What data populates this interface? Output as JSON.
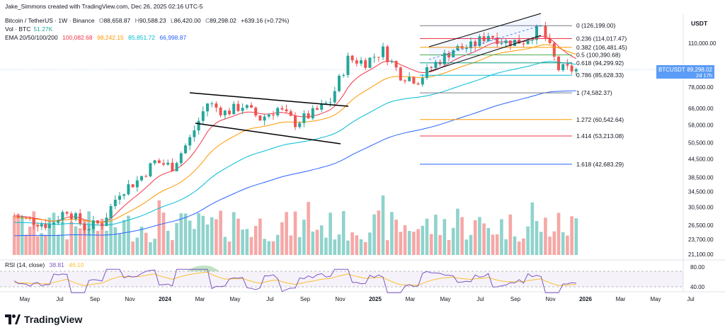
{
  "header": {
    "byline": "Jake_Simmons created with TradingView.com, Dec 26, 2025 02:16 UTC-5",
    "symbol": "Bitcoin / TetherUS · 1W · Binance",
    "ohlc": {
      "o_label": "O",
      "o": "88,658.87",
      "h_label": "H",
      "h": "90,588.23",
      "l_label": "L",
      "l": "86,420.00",
      "c_label": "C",
      "c": "89,298.02",
      "chg": "+639.16 (+0.72%)"
    },
    "vol_label": "Vol · BTC",
    "vol_value": "51.27K",
    "ema_label": "EMA 20/50/100/200",
    "ema_values": [
      "100,082.68",
      "98,242.15",
      "85,851.72",
      "66,998.87"
    ]
  },
  "colors": {
    "up": "#26a69a",
    "down": "#ef5350",
    "vol_up": "#8fd3cc",
    "vol_down": "#f5a8a6",
    "ema20": "#f23645",
    "ema50": "#ff9800",
    "ema100": "#00bcd4",
    "ema200": "#2962ff",
    "rsi": "#7e57c2",
    "rsi_ma": "#fbc02d",
    "price_tag": "#5b9cf6",
    "fib_0": "#787b86",
    "fib_0236": "#f23645",
    "fib_0382": "#ff9800",
    "fib_05": "#4caf50",
    "fib_0618": "#089981",
    "fib_0786": "#00bcd4",
    "fib_1": "#787b86",
    "fib_1272": "#ff9800",
    "fib_1414": "#f23645",
    "fib_1618": "#2962ff"
  },
  "price_axis": {
    "unit": "USDT",
    "labels": [
      "110,000.00",
      "78,000.00",
      "66,000.00",
      "58,000.00",
      "50,500.00",
      "44,500.00",
      "38,500.00",
      "34,500.00",
      "30,500.00",
      "26,500.00",
      "23,700.00",
      "21,100.00"
    ],
    "last_price_ticker": "BTCUSDT",
    "last_price": "89,298.02",
    "countdown": "2d 17h"
  },
  "fib_levels": [
    {
      "ratio": "0",
      "price": "126,199.00",
      "label": "0 (126,199.00)",
      "value": 126199
    },
    {
      "ratio": "0.236",
      "price": "114,017.47",
      "label": "0.236 (114,017.47)",
      "value": 114017.47
    },
    {
      "ratio": "0.382",
      "price": "106,481.45",
      "label": "0.382 (106,481.45)",
      "value": 106481.45
    },
    {
      "ratio": "0.5",
      "price": "100,390.68",
      "label": "0.5 (100,390.68)",
      "value": 100390.68
    },
    {
      "ratio": "0.618",
      "price": "94,299.92",
      "label": "0.618 (94,299.92)",
      "value": 94299.92
    },
    {
      "ratio": "0.786",
      "price": "85,628.33",
      "label": "0.786 (85,628.33)",
      "value": 85628.33
    },
    {
      "ratio": "1",
      "price": "74,582.37",
      "label": "1 (74,582.37)",
      "value": 74582.37
    },
    {
      "ratio": "1.272",
      "price": "60,542.64",
      "label": "1.272 (60,542.64)",
      "value": 60542.64
    },
    {
      "ratio": "1.414",
      "price": "53,213.08",
      "label": "1.414 (53,213.08)",
      "value": 53213.08
    },
    {
      "ratio": "1.618",
      "price": "42,683.29",
      "label": "1.618 (42,683.29)",
      "value": 42683.29
    }
  ],
  "rsi": {
    "label": "RSI (14, close)",
    "value": "38.81",
    "ma_value": "46.10",
    "axis_labels": [
      "80.00",
      "40.00"
    ]
  },
  "time_axis": {
    "labels": [
      "May",
      "Jul",
      "Sep",
      "Nov",
      "2024",
      "Mar",
      "May",
      "Jul",
      "Sep",
      "Nov",
      "2025",
      "Mar",
      "May",
      "Jul",
      "Sep",
      "Nov",
      "2026",
      "Mar",
      "May",
      "Jul"
    ]
  },
  "footer": {
    "brand": "TradingView"
  },
  "chart_data": {
    "type": "candlestick",
    "title": "Bitcoin / TetherUS · 1W · Binance",
    "x_range": [
      "2023-04",
      "2025-12"
    ],
    "y_scale": "log",
    "ylim": [
      21100,
      126199
    ],
    "grid": false,
    "weekly_close_path": [
      [
        "2023-04",
        28500
      ],
      [
        "2023-06",
        26500
      ],
      [
        "2023-07",
        30000
      ],
      [
        "2023-08",
        26000
      ],
      [
        "2023-09",
        27000
      ],
      [
        "2023-10",
        34500
      ],
      [
        "2023-11",
        37500
      ],
      [
        "2023-12",
        43500
      ],
      [
        "2024-01",
        42000
      ],
      [
        "2024-02",
        52000
      ],
      [
        "2024-03",
        69000
      ],
      [
        "2024-04",
        64000
      ],
      [
        "2024-05",
        67500
      ],
      [
        "2024-06",
        61000
      ],
      [
        "2024-07",
        66000
      ],
      [
        "2024-08",
        59000
      ],
      [
        "2024-09",
        63500
      ],
      [
        "2024-10",
        70000
      ],
      [
        "2024-11",
        97000
      ],
      [
        "2024-12",
        95000
      ],
      [
        "2025-01",
        104000
      ],
      [
        "2025-02",
        86000
      ],
      [
        "2025-03",
        82500
      ],
      [
        "2025-04",
        94000
      ],
      [
        "2025-05",
        105000
      ],
      [
        "2025-06",
        107000
      ],
      [
        "2025-07",
        118000
      ],
      [
        "2025-08",
        111000
      ],
      [
        "2025-09",
        112000
      ],
      [
        "2025-10",
        124000
      ],
      [
        "2025-11",
        90000
      ],
      [
        "2025-12",
        89298
      ]
    ],
    "series": [
      {
        "name": "EMA 20",
        "last": 100082.68
      },
      {
        "name": "EMA 50",
        "last": 98242.15
      },
      {
        "name": "EMA 100",
        "last": 85851.72
      },
      {
        "name": "EMA 200",
        "last": 66998.87
      }
    ],
    "rsi_last": 38.81,
    "rsi_ma_last": 46.1
  }
}
